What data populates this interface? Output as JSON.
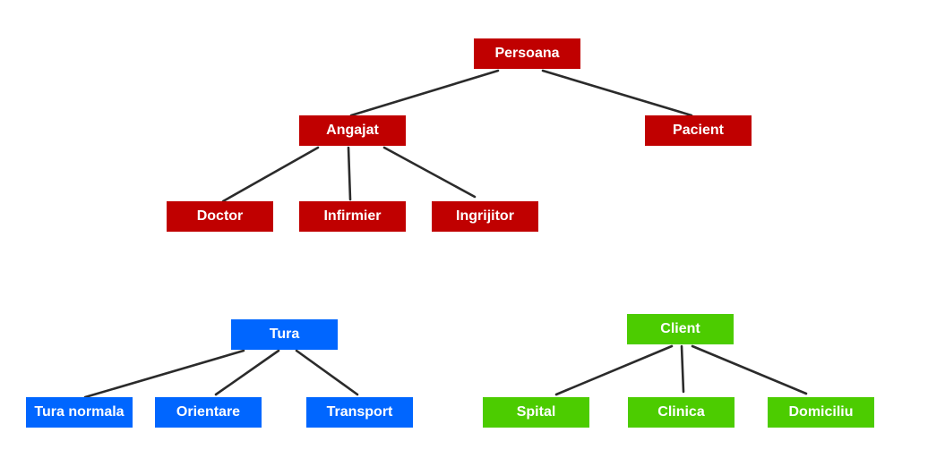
{
  "colors": {
    "red": "#c00000",
    "blue": "#0066ff",
    "green": "#4ccc00",
    "edge": "#2b2b2b"
  },
  "trees": [
    {
      "color": "red",
      "root": "Persoana",
      "children": [
        {
          "label": "Angajat",
          "children": [
            "Doctor",
            "Infirmier",
            "Ingrijitor"
          ]
        },
        {
          "label": "Pacient",
          "children": []
        }
      ]
    },
    {
      "color": "blue",
      "root": "Tura",
      "children": [
        {
          "label": "Tura normala",
          "children": []
        },
        {
          "label": "Orientare",
          "children": []
        },
        {
          "label": "Transport",
          "children": []
        }
      ]
    },
    {
      "color": "green",
      "root": "Client",
      "children": [
        {
          "label": "Spital",
          "children": []
        },
        {
          "label": "Clinica",
          "children": []
        },
        {
          "label": "Domiciliu",
          "children": []
        }
      ]
    }
  ]
}
